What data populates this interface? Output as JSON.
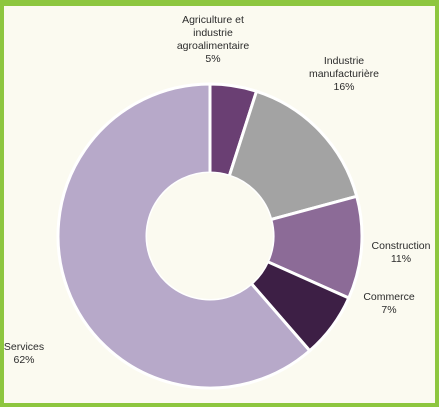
{
  "chart_data": {
    "type": "pie",
    "title": "",
    "slices": [
      {
        "label_lines": [
          "Agriculture et",
          "industrie",
          "agroalimentaire"
        ],
        "label": "Agriculture et industrie agroalimentaire",
        "value": 5,
        "value_text": "5%",
        "color": "#6a3f73"
      },
      {
        "label_lines": [
          "Industrie",
          "manufacturière"
        ],
        "label": "Industrie manufacturière",
        "value": 16,
        "value_text": "16%",
        "color": "#a3a3a3"
      },
      {
        "label_lines": [
          "Construction"
        ],
        "label": "Construction",
        "value": 11,
        "value_text": "11%",
        "color": "#8c6b97"
      },
      {
        "label_lines": [
          "Commerce"
        ],
        "label": "Commerce",
        "value": 7,
        "value_text": "7%",
        "color": "#3d1f45"
      },
      {
        "label_lines": [
          "Services"
        ],
        "label": "Services",
        "value": 62,
        "value_text": "62%",
        "color": "#b7a9c9"
      }
    ],
    "legend": "none",
    "style": "donut"
  },
  "colors": {
    "frame": "#8dc63f",
    "background": "#fbfaf0",
    "slice_border": "#ffffff"
  }
}
